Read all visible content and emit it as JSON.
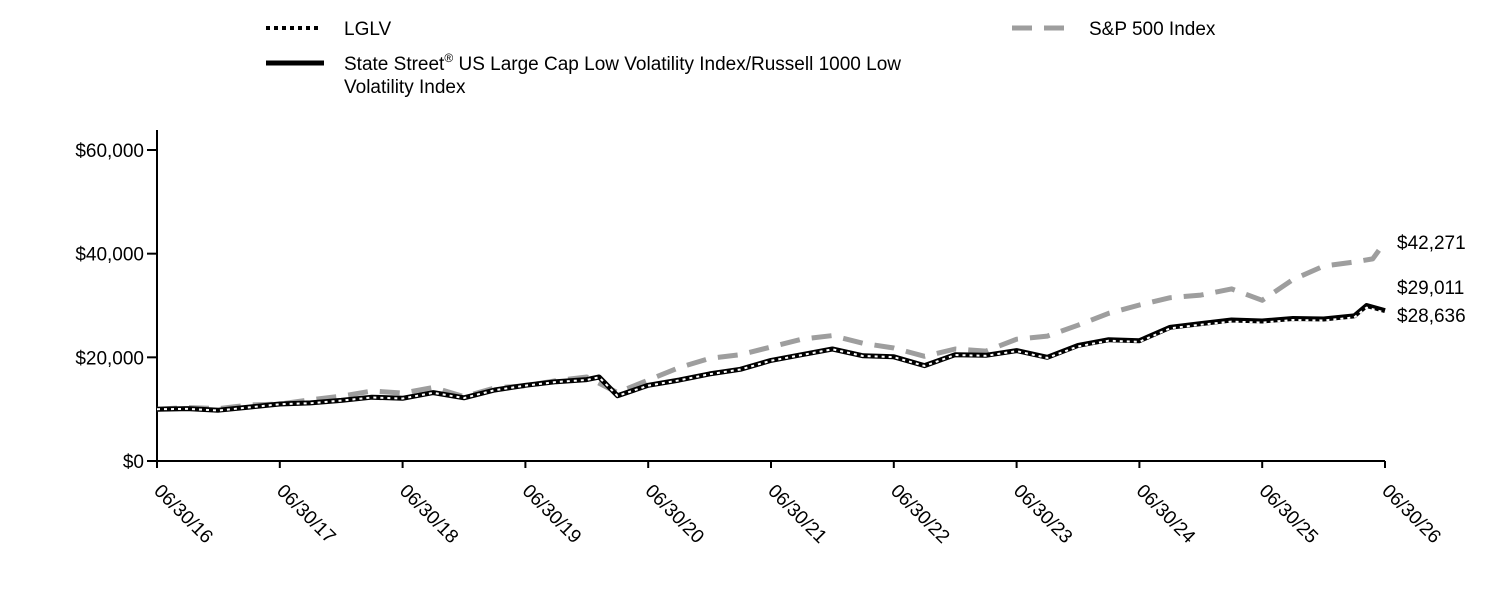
{
  "chart_data": {
    "type": "line",
    "title": "",
    "xlabel": "",
    "ylabel": "",
    "ylim": [
      0,
      60000
    ],
    "yticks": [
      "$0",
      "$20,000",
      "$40,000",
      "$60,000"
    ],
    "ytick_values": [
      0,
      20000,
      40000,
      60000
    ],
    "x_ticks": [
      "06/30/16",
      "06/30/17",
      "06/30/18",
      "06/30/19",
      "06/30/20",
      "06/30/21",
      "06/30/22",
      "06/30/23",
      "06/30/24",
      "06/30/25",
      "06/30/26"
    ],
    "grid": false,
    "legend_position": "top",
    "colors": {
      "fund": "#000000",
      "benchmark": "#000000",
      "sp500": "#9e9e9e"
    },
    "legend": {
      "fund": "LGLV",
      "benchmark_line1": "State Street",
      "benchmark_reg": "®",
      "benchmark_line1_rest": " US Large Cap Low Volatility Index/Russell 1000 Low",
      "benchmark_line2": "Volatility Index",
      "sp500": "S&P 500 Index"
    },
    "end_labels": {
      "sp500": "$42,271",
      "benchmark": "$29,011",
      "fund": "$28,636"
    },
    "series": [
      {
        "key": "sp500",
        "name": "S&P 500 Index",
        "points": [
          [
            0,
            10000
          ],
          [
            0.25,
            10300
          ],
          [
            0.5,
            10100
          ],
          [
            0.75,
            10800
          ],
          [
            1,
            11000
          ],
          [
            1.25,
            11800
          ],
          [
            1.5,
            12500
          ],
          [
            1.75,
            13500
          ],
          [
            2,
            13100
          ],
          [
            2.25,
            14200
          ],
          [
            2.5,
            12400
          ],
          [
            2.75,
            14100
          ],
          [
            3,
            14500
          ],
          [
            3.25,
            15500
          ],
          [
            3.5,
            16200
          ],
          [
            3.75,
            13200
          ],
          [
            4,
            15600
          ],
          [
            4.25,
            18000
          ],
          [
            4.5,
            19800
          ],
          [
            4.75,
            20500
          ],
          [
            5,
            22000
          ],
          [
            5.25,
            23500
          ],
          [
            5.5,
            24200
          ],
          [
            5.75,
            22700
          ],
          [
            6,
            21800
          ],
          [
            6.25,
            20200
          ],
          [
            6.5,
            21600
          ],
          [
            6.75,
            21200
          ],
          [
            7,
            23500
          ],
          [
            7.25,
            24100
          ],
          [
            7.5,
            26200
          ],
          [
            7.75,
            28500
          ],
          [
            8,
            30100
          ],
          [
            8.25,
            31500
          ],
          [
            8.5,
            32000
          ],
          [
            8.75,
            33200
          ],
          [
            9,
            31000
          ],
          [
            9.25,
            35000
          ],
          [
            9.5,
            37600
          ],
          [
            9.75,
            38400
          ],
          [
            9.9,
            39000
          ],
          [
            10,
            42271
          ]
        ]
      },
      {
        "key": "benchmark",
        "name": "State Street® US Large Cap Low Volatility Index/Russell 1000 Low Volatility Index",
        "points": [
          [
            0,
            10000
          ],
          [
            0.25,
            10100
          ],
          [
            0.5,
            9800
          ],
          [
            0.75,
            10400
          ],
          [
            1,
            11000
          ],
          [
            1.25,
            11200
          ],
          [
            1.5,
            11700
          ],
          [
            1.75,
            12300
          ],
          [
            2,
            12100
          ],
          [
            2.25,
            13200
          ],
          [
            2.5,
            12200
          ],
          [
            2.75,
            13700
          ],
          [
            3,
            14600
          ],
          [
            3.25,
            15300
          ],
          [
            3.5,
            15700
          ],
          [
            3.6,
            16200
          ],
          [
            3.75,
            12600
          ],
          [
            4,
            14600
          ],
          [
            4.25,
            15600
          ],
          [
            4.5,
            16800
          ],
          [
            4.75,
            17700
          ],
          [
            5,
            19400
          ],
          [
            5.25,
            20500
          ],
          [
            5.5,
            21600
          ],
          [
            5.75,
            20300
          ],
          [
            6,
            20100
          ],
          [
            6.25,
            18400
          ],
          [
            6.5,
            20500
          ],
          [
            6.75,
            20400
          ],
          [
            7,
            21300
          ],
          [
            7.25,
            20000
          ],
          [
            7.5,
            22300
          ],
          [
            7.75,
            23400
          ],
          [
            8,
            23200
          ],
          [
            8.25,
            25800
          ],
          [
            8.5,
            26500
          ],
          [
            8.75,
            27200
          ],
          [
            9,
            27000
          ],
          [
            9.25,
            27500
          ],
          [
            9.5,
            27400
          ],
          [
            9.75,
            28000
          ],
          [
            9.85,
            30000
          ],
          [
            10,
            29011
          ]
        ]
      },
      {
        "key": "fund",
        "name": "LGLV",
        "points": [
          [
            0,
            10000
          ],
          [
            0.25,
            10050
          ],
          [
            0.5,
            9750
          ],
          [
            0.75,
            10350
          ],
          [
            1,
            10950
          ],
          [
            1.25,
            11150
          ],
          [
            1.5,
            11650
          ],
          [
            1.75,
            12250
          ],
          [
            2,
            12050
          ],
          [
            2.25,
            13150
          ],
          [
            2.5,
            12150
          ],
          [
            2.75,
            13650
          ],
          [
            3,
            14550
          ],
          [
            3.25,
            15250
          ],
          [
            3.5,
            15650
          ],
          [
            3.6,
            16150
          ],
          [
            3.75,
            12550
          ],
          [
            4,
            14550
          ],
          [
            4.25,
            15550
          ],
          [
            4.5,
            16750
          ],
          [
            4.75,
            17650
          ],
          [
            5,
            19350
          ],
          [
            5.25,
            20450
          ],
          [
            5.5,
            21550
          ],
          [
            5.75,
            20250
          ],
          [
            6,
            20050
          ],
          [
            6.25,
            18350
          ],
          [
            6.5,
            20450
          ],
          [
            6.75,
            20300
          ],
          [
            7,
            21200
          ],
          [
            7.25,
            19900
          ],
          [
            7.5,
            22100
          ],
          [
            7.75,
            23200
          ],
          [
            8,
            23000
          ],
          [
            8.25,
            25600
          ],
          [
            8.5,
            26300
          ],
          [
            8.75,
            26900
          ],
          [
            9,
            26700
          ],
          [
            9.25,
            27200
          ],
          [
            9.5,
            27100
          ],
          [
            9.75,
            27700
          ],
          [
            9.85,
            29600
          ],
          [
            10,
            28636
          ]
        ]
      }
    ]
  }
}
